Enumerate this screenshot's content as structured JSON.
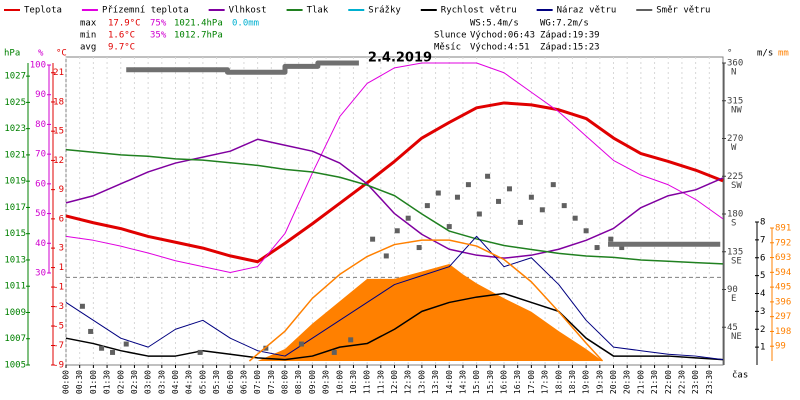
{
  "chart_data": {
    "type": "line",
    "title": "2.4.2019",
    "x_label": "čas",
    "xlim": [
      0,
      24
    ],
    "xticks": [
      {
        "value": 0,
        "label": "00:00"
      },
      {
        "value": 0.5,
        "label": "00:30"
      },
      {
        "value": 1,
        "label": "01:00"
      },
      {
        "value": 1.5,
        "label": "01:30"
      },
      {
        "value": 2,
        "label": "02:00"
      },
      {
        "value": 2.5,
        "label": "02:30"
      },
      {
        "value": 3,
        "label": "03:00"
      },
      {
        "value": 3.5,
        "label": "03:30"
      },
      {
        "value": 4,
        "label": "04:00"
      },
      {
        "value": 4.5,
        "label": "04:30"
      },
      {
        "value": 5,
        "label": "05:00"
      },
      {
        "value": 5.5,
        "label": "05:30"
      },
      {
        "value": 6,
        "label": "06:00"
      },
      {
        "value": 6.5,
        "label": "06:30"
      },
      {
        "value": 7,
        "label": "07:00"
      },
      {
        "value": 7.5,
        "label": "07:30"
      },
      {
        "value": 8,
        "label": "08:00"
      },
      {
        "value": 8.5,
        "label": "08:30"
      },
      {
        "value": 9,
        "label": "09:00"
      },
      {
        "value": 9.5,
        "label": "09:30"
      },
      {
        "value": 10,
        "label": "10:00"
      },
      {
        "value": 10.5,
        "label": "10:30"
      },
      {
        "value": 11,
        "label": "11:00"
      },
      {
        "value": 11.5,
        "label": "11:30"
      },
      {
        "value": 12,
        "label": "12:00"
      },
      {
        "value": 12.5,
        "label": "12:30"
      },
      {
        "value": 13,
        "label": "13:00"
      },
      {
        "value": 13.5,
        "label": "13:30"
      },
      {
        "value": 14,
        "label": "14:00"
      },
      {
        "value": 14.5,
        "label": "14:30"
      },
      {
        "value": 15,
        "label": "15:00"
      },
      {
        "value": 15.5,
        "label": "15:30"
      },
      {
        "value": 16,
        "label": "16:00"
      },
      {
        "value": 16.5,
        "label": "16:30"
      },
      {
        "value": 17,
        "label": "17:00"
      },
      {
        "value": 17.5,
        "label": "17:30"
      },
      {
        "value": 18,
        "label": "18:00"
      },
      {
        "value": 18.5,
        "label": "18:30"
      },
      {
        "value": 19,
        "label": "19:00"
      },
      {
        "value": 19.5,
        "label": "19:30"
      },
      {
        "value": 20,
        "label": "20:00"
      },
      {
        "value": 20.5,
        "label": "20:30"
      },
      {
        "value": 21,
        "label": "21:00"
      },
      {
        "value": 21.5,
        "label": "21:30"
      },
      {
        "value": 22,
        "label": "22:00"
      },
      {
        "value": 22.5,
        "label": "22:30"
      },
      {
        "value": 23,
        "label": "23:00"
      },
      {
        "value": 23.5,
        "label": "23:30"
      }
    ],
    "grid": true,
    "axes": {
      "pressure": {
        "label": "hPa",
        "color": "#008000",
        "ylim": [
          1005,
          1028
        ],
        "ticks": [
          1005,
          1007,
          1009,
          1011,
          1013,
          1015,
          1017,
          1019,
          1021,
          1023,
          1025,
          1027
        ]
      },
      "humidity": {
        "label": "%",
        "color": "#d000d0",
        "ylim": [
          30,
          100
        ],
        "ticks": [
          30,
          40,
          50,
          60,
          70,
          80,
          90,
          100
        ]
      },
      "temperature": {
        "label": "°C",
        "color": "#e00000",
        "ylim": [
          -9,
          22
        ],
        "ticks": [
          -9,
          -7,
          -5,
          -3,
          -1,
          1,
          3,
          6,
          9,
          12,
          15,
          18,
          21
        ]
      },
      "direction": {
        "label": "°",
        "color": "#404040",
        "ylim": [
          0,
          360
        ],
        "ticks": [
          45,
          90,
          135,
          180,
          225,
          270,
          315,
          360
        ],
        "compass": [
          "NE",
          "E",
          "SE",
          "S",
          "SW",
          "W",
          "NW",
          "N"
        ]
      },
      "wind": {
        "label": "m/s",
        "color": "#000000",
        "ylim": [
          0,
          8
        ],
        "ticks": [
          1,
          2,
          3,
          4,
          5,
          6,
          7,
          8
        ]
      },
      "radiation": {
        "label": "mm",
        "color": "#ff8000",
        "ylim": [
          0,
          891
        ],
        "ticks": [
          99,
          198,
          297,
          396,
          495,
          594,
          693,
          792,
          891
        ]
      }
    },
    "series": [
      {
        "name": "Teplota",
        "color": "#e00000",
        "axis": "temperature",
        "width": 3,
        "x": [
          0,
          1,
          2,
          3,
          4,
          5,
          6,
          7,
          8,
          9,
          10,
          11,
          12,
          13,
          14,
          15,
          16,
          17,
          18,
          19,
          20,
          21,
          22,
          23,
          24
        ],
        "values": [
          6.3,
          5.6,
          5.0,
          4.2,
          3.6,
          3.0,
          2.2,
          1.6,
          3.5,
          5.5,
          7.6,
          9.7,
          11.9,
          14.3,
          15.9,
          17.4,
          17.9,
          17.7,
          17.2,
          16.3,
          14.3,
          12.7,
          11.9,
          11.0,
          9.9
        ]
      },
      {
        "name": "Přízemní teplota",
        "color": "#e000e0",
        "axis": "temperature",
        "width": 1,
        "x": [
          0,
          1,
          2,
          3,
          4,
          5,
          6,
          7,
          8,
          9,
          10,
          11,
          12,
          13,
          14,
          15,
          16,
          17,
          18,
          19,
          20,
          21,
          22,
          23,
          24
        ],
        "values": [
          4.2,
          3.8,
          3.2,
          2.5,
          1.7,
          1.1,
          0.5,
          1.1,
          4.5,
          10.7,
          16.5,
          19.9,
          21.5,
          22,
          22,
          22,
          21,
          19,
          17,
          14.5,
          12,
          10.5,
          9.5,
          8,
          6
        ]
      },
      {
        "name": "Vlhkost",
        "color": "#8000a0",
        "axis": "humidity",
        "width": 1.5,
        "x": [
          0,
          1,
          2,
          3,
          4,
          5,
          6,
          7,
          8,
          9,
          10,
          11,
          12,
          13,
          14,
          15,
          16,
          17,
          18,
          19,
          20,
          21,
          22,
          23,
          24
        ],
        "values": [
          53.6,
          56,
          60,
          64,
          67,
          69,
          71,
          75,
          73,
          71,
          67,
          60,
          50,
          43,
          38,
          36,
          35,
          36,
          38,
          41,
          45,
          52,
          56,
          58,
          62
        ]
      },
      {
        "name": "Tlak",
        "color": "#208020",
        "axis": "pressure",
        "width": 1.5,
        "x": [
          0,
          1,
          2,
          3,
          4,
          5,
          6,
          7,
          8,
          9,
          10,
          11,
          12,
          13,
          14,
          15,
          16,
          17,
          18,
          19,
          20,
          21,
          22,
          23,
          24
        ],
        "values": [
          1021.4,
          1021.2,
          1021.0,
          1020.9,
          1020.7,
          1020.6,
          1020.4,
          1020.2,
          1019.9,
          1019.7,
          1019.3,
          1018.7,
          1017.9,
          1016.5,
          1015.2,
          1014.6,
          1014.1,
          1013.8,
          1013.5,
          1013.3,
          1013.2,
          1013.0,
          1012.9,
          1012.8,
          1012.7
        ]
      },
      {
        "name": "Srážky",
        "color": "#00b0d0",
        "axis": "radiation",
        "width": 1,
        "x": [],
        "values": []
      },
      {
        "name": "Rychlost větru",
        "color": "#000000",
        "axis": "wind",
        "width": 1.5,
        "x": [
          0,
          1,
          2,
          3,
          4,
          5,
          6,
          7,
          8,
          9,
          10,
          11,
          12,
          13,
          14,
          15,
          16,
          17,
          18,
          19,
          20,
          21,
          22,
          23,
          24
        ],
        "values": [
          1.5,
          1.2,
          0.8,
          0.5,
          0.5,
          0.8,
          0.6,
          0.4,
          0.3,
          0.5,
          1.0,
          1.2,
          2.0,
          3.0,
          3.5,
          3.8,
          4.0,
          3.5,
          3.0,
          1.5,
          0.5,
          0.5,
          0.5,
          0.4,
          0.3
        ]
      },
      {
        "name": "Náraz větru",
        "color": "#000080",
        "axis": "wind",
        "width": 1,
        "x": [
          0,
          1,
          2,
          3,
          4,
          5,
          6,
          7,
          8,
          9,
          10,
          11,
          12,
          13,
          14,
          15,
          16,
          17,
          18,
          19,
          20,
          21,
          22,
          23,
          24
        ],
        "values": [
          3.5,
          2.5,
          1.5,
          1.0,
          2.0,
          2.5,
          1.5,
          0.8,
          0.5,
          1.5,
          2.5,
          3.5,
          4.5,
          5.0,
          5.5,
          7.2,
          5.5,
          6.0,
          4.5,
          2.5,
          1.0,
          0.8,
          0.6,
          0.5,
          0.3
        ]
      },
      {
        "name": "Směr větru",
        "color": "#606060",
        "axis": "direction",
        "style": "points",
        "x": [
          0.6,
          0.9,
          1.3,
          1.7,
          2.2,
          4.9,
          7.3,
          8.6,
          9.8,
          10.4,
          11.2,
          11.7,
          12.1,
          12.5,
          12.9,
          13.2,
          13.6,
          14.0,
          14.3,
          14.7,
          15.1,
          15.4,
          15.8,
          16.2,
          16.6,
          17.0,
          17.4,
          17.8,
          18.2,
          18.6,
          19.0,
          19.4,
          19.9,
          20.3
        ],
        "values": [
          70,
          40,
          20,
          15,
          25,
          15,
          20,
          25,
          15,
          30,
          150,
          130,
          160,
          175,
          140,
          190,
          205,
          165,
          200,
          215,
          180,
          225,
          195,
          210,
          170,
          200,
          185,
          215,
          190,
          175,
          160,
          140,
          150,
          140
        ]
      },
      {
        "color": "#707070",
        "axis": "direction",
        "width": 5,
        "x": [
          2.2,
          5.9,
          5.9,
          8.0,
          8.0,
          9.2,
          9.2,
          10.7,
          10.7,
          19.8,
          23.9
        ],
        "values": [
          352,
          352,
          349,
          349,
          356,
          356,
          360,
          360,
          null,
          144,
          144
        ]
      },
      {
        "color": "#ff8000",
        "axis": "radiation",
        "style": "area",
        "x": [
          7,
          8,
          9,
          10,
          11,
          12,
          13,
          14,
          14.5,
          15,
          16,
          17,
          18,
          19,
          19.6
        ],
        "values": [
          0,
          80,
          250,
          400,
          550,
          550,
          600,
          650,
          580,
          520,
          420,
          330,
          200,
          80,
          0
        ]
      },
      {
        "color": "#ff8000",
        "axis": "radiation",
        "width": 1.5,
        "x": [
          6.7,
          8,
          9,
          10,
          11,
          12,
          13,
          14,
          15,
          16,
          17,
          18,
          19,
          19.6
        ],
        "values": [
          0,
          200,
          420,
          580,
          700,
          780,
          810,
          810,
          770,
          680,
          530,
          330,
          120,
          0
        ]
      }
    ],
    "stats": [
      {
        "label": "max",
        "values": [
          "17.9°C",
          "75%",
          "1021.4hPa",
          "0.0mm"
        ]
      },
      {
        "label": "min",
        "values": [
          "1.6°C",
          "35%",
          "1012.7hPa"
        ]
      },
      {
        "label": "avg",
        "values": [
          "9.7°C"
        ]
      }
    ],
    "wind_stats": [
      "WS:5.4m/s",
      "WG:7.2m/s"
    ],
    "sun": {
      "label": "Slunce",
      "rise": "Východ:06:43",
      "set": "Západ:19:39"
    },
    "moon": {
      "label": "Měsíc",
      "rise": "Východ:4:51",
      "set": "Západ:15:23"
    }
  }
}
